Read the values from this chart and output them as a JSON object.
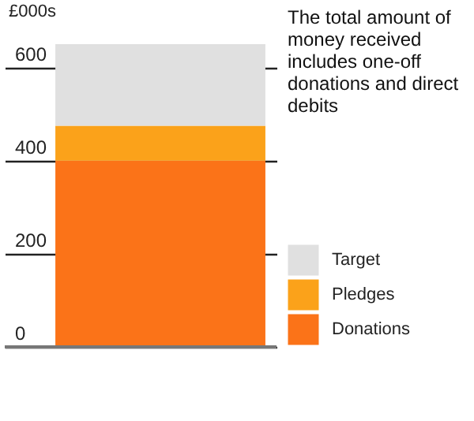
{
  "chart_data": {
    "type": "bar",
    "ylabel": "£000s",
    "annotations": [
      "The total amount of money received includes one-off donations and direct debits"
    ],
    "categories": [
      null
    ],
    "stacked": true,
    "series": [
      {
        "name": "Donations",
        "color": "#fb7318",
        "values": [
          400
        ]
      },
      {
        "name": "Pledges",
        "color": "#fba21a",
        "values": [
          75
        ]
      },
      {
        "name": "Target",
        "color": "#e0e0e0",
        "values": [
          175
        ]
      }
    ],
    "ylim": [
      0,
      650
    ],
    "yticks": [
      0,
      200,
      400,
      600
    ],
    "grid": "y",
    "legend": "bottom right",
    "tick_labels": "y"
  }
}
